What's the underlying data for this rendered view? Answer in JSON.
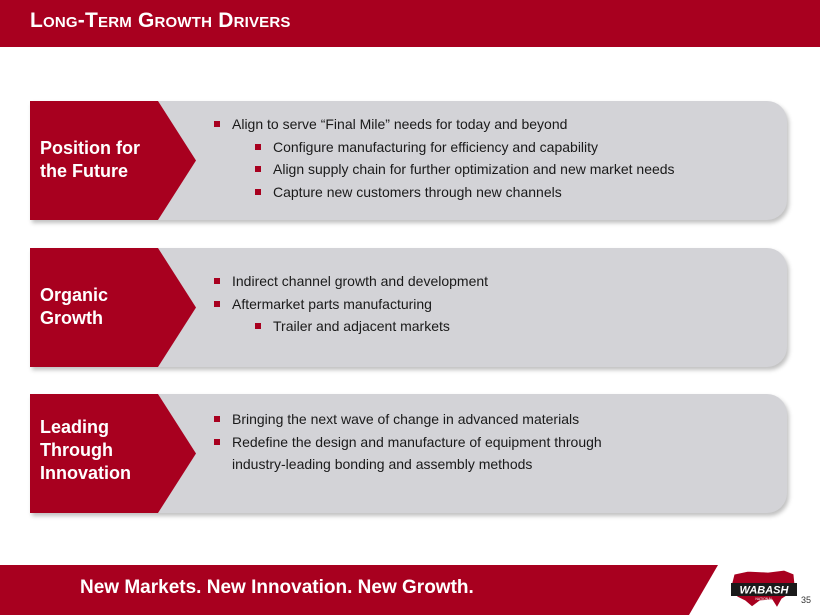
{
  "header": {
    "title": "Long-Term Growth Drivers"
  },
  "panels": [
    {
      "label_lines": [
        "Position for",
        "the Future"
      ],
      "bullets": [
        {
          "text": "Align to serve “Final Mile” needs for today and beyond",
          "level": 1
        },
        {
          "text": "Configure manufacturing for efficiency and capability",
          "level": 2
        },
        {
          "text": "Align supply chain for further optimization and new market needs",
          "level": 2
        },
        {
          "text": "Capture new customers through  new channels",
          "level": 2
        }
      ]
    },
    {
      "label_lines": [
        "Organic",
        "Growth"
      ],
      "bullets": [
        {
          "text": "Indirect channel growth and development",
          "level": 1
        },
        {
          "text": "Aftermarket parts manufacturing",
          "level": 1
        },
        {
          "text": "Trailer and adjacent markets",
          "level": 2
        }
      ]
    },
    {
      "label_lines": [
        "Leading",
        "Through",
        "Innovation"
      ],
      "bullets": [
        {
          "text": "Bringing the next wave of change in advanced materials",
          "level": 1
        },
        {
          "text": "Redefine the design and manufacture of equipment  through",
          "continuation": "industry-leading  bonding  and assembly methods",
          "level": 1
        }
      ]
    }
  ],
  "footer": {
    "tagline": "New Markets. New Innovation. New Growth."
  },
  "logo": {
    "text": "WABASH",
    "subtext": "NATIONAL"
  },
  "page_number": "35",
  "colors": {
    "brand_red": "#a8001f",
    "panel_gray": "#d3d3d7"
  }
}
